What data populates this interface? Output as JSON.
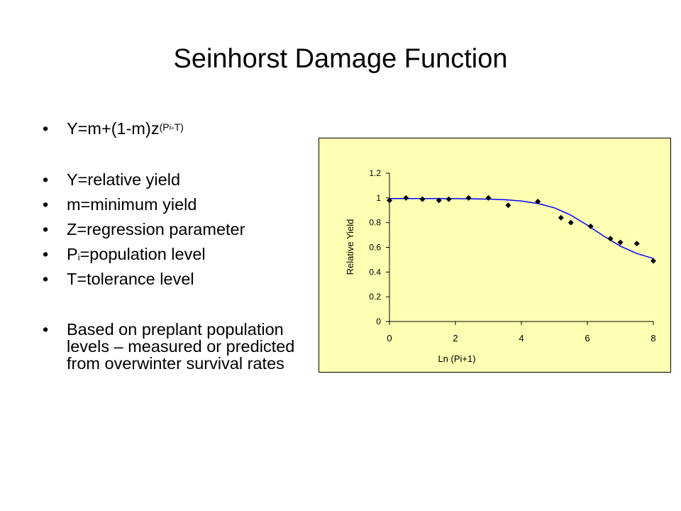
{
  "slide": {
    "title": "Seinhorst Damage Function"
  },
  "bullets": {
    "formula": {
      "base": "Y=m+(1-m)z",
      "exp_open": "(P",
      "exp_sub": "i",
      "exp_rest": "-T)"
    },
    "def_y": "Y=relative yield",
    "def_m": "m=minimum yield",
    "def_z": "Z=regression parameter",
    "def_p": {
      "prefix": "P",
      "sub": "i",
      "rest": "=population level"
    },
    "def_t": "T=tolerance level",
    "note": "Based on preplant population levels – measured or predicted from overwinter survival rates",
    "marker": "•"
  },
  "chart_data": {
    "type": "scatter",
    "xlabel": "Ln (Pi+1)",
    "ylabel": "Relative Yield",
    "xlim": [
      0,
      8
    ],
    "ylim": [
      0,
      1.2
    ],
    "xticks": [
      "0",
      "2",
      "4",
      "6",
      "8"
    ],
    "yticks": [
      "0",
      "0.2",
      "0.4",
      "0.6",
      "0.8",
      "1",
      "1.2"
    ],
    "points": {
      "x": [
        0,
        0.5,
        1.0,
        1.5,
        1.8,
        2.4,
        3.0,
        3.6,
        4.5,
        5.2,
        5.5,
        6.1,
        6.7,
        7.0,
        7.5,
        8.0
      ],
      "y": [
        0.98,
        1.0,
        0.99,
        0.98,
        0.99,
        1.0,
        1.0,
        0.94,
        0.97,
        0.84,
        0.8,
        0.77,
        0.67,
        0.64,
        0.63,
        0.49
      ]
    },
    "fit_curve": {
      "x": [
        0,
        0.5,
        1,
        1.5,
        2,
        2.5,
        3,
        3.5,
        4,
        4.5,
        5,
        5.5,
        6,
        6.5,
        7,
        7.5,
        8
      ],
      "y": [
        0.995,
        0.995,
        0.995,
        0.995,
        0.994,
        0.993,
        0.99,
        0.985,
        0.975,
        0.955,
        0.92,
        0.86,
        0.78,
        0.69,
        0.61,
        0.55,
        0.51
      ]
    },
    "grid": false,
    "colors": {
      "panel": "#ffffb3",
      "points": "#000000",
      "curve": "#0000ff"
    }
  }
}
